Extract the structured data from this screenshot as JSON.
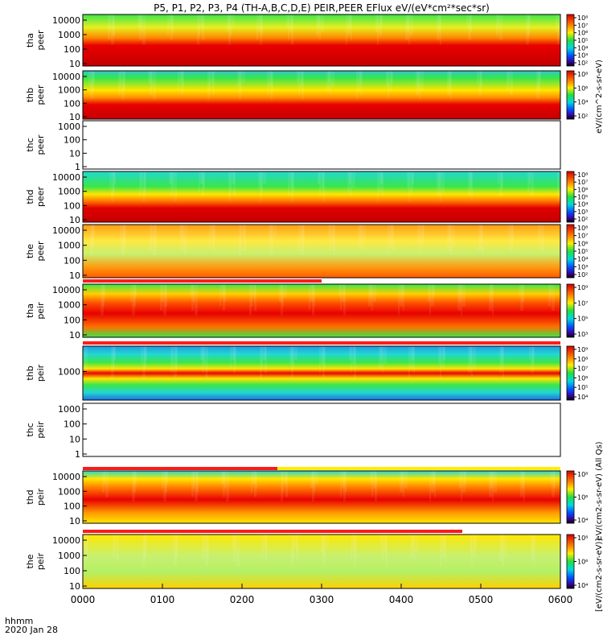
{
  "title": "P5, P1, P2, P3, P4 (TH-A,B,C,D,E) PEIR,PEER EFlux eV/(eV*cm²*sec*sr)",
  "x_axis": {
    "ticks": [
      "0000",
      "0100",
      "0200",
      "0300",
      "0400",
      "0500",
      "0600"
    ],
    "label_line1": "hhmm",
    "label_line2": "2020 Jan 28"
  },
  "colorbar": {
    "label_peer": "eV/(cm^2-s-sr-eV)",
    "label_peir": "[eV/(cm2-s-sr-eV)]",
    "label_common": "eV/(cm2-s-sr-eV) (All Qs)"
  },
  "chart_data": [
    {
      "type": "heatmap",
      "probe": "tha",
      "species": "peer",
      "ylabel": "tha peer",
      "yticks": [
        "10",
        "100",
        "1000",
        "10000"
      ],
      "colorbar_ticks": [
        "10²",
        "10³",
        "10⁴",
        "10⁵",
        "10⁶",
        "10⁷",
        "10⁸"
      ],
      "has_data": true
    },
    {
      "type": "heatmap",
      "probe": "thb",
      "species": "peer",
      "ylabel": "thb peer",
      "yticks": [
        "10",
        "100",
        "1000",
        "10000"
      ],
      "colorbar_ticks": [
        "10²",
        "10⁴",
        "10⁶",
        "10⁸"
      ],
      "has_data": true
    },
    {
      "type": "heatmap",
      "probe": "thc",
      "species": "peer",
      "ylabel": "thc peer",
      "yticks": [
        "1",
        "10",
        "100",
        "1000"
      ],
      "colorbar_ticks": [],
      "has_data": false
    },
    {
      "type": "heatmap",
      "probe": "thd",
      "species": "peer",
      "ylabel": "thd peer",
      "yticks": [
        "10",
        "100",
        "1000",
        "10000"
      ],
      "colorbar_ticks": [
        "10²",
        "10³",
        "10⁴",
        "10⁵",
        "10⁶",
        "10⁷",
        "10⁸"
      ],
      "has_data": true
    },
    {
      "type": "heatmap",
      "probe": "the",
      "species": "peer",
      "ylabel": "the peer",
      "yticks": [
        "10",
        "100",
        "1000",
        "10000"
      ],
      "colorbar_ticks": [
        "10²",
        "10³",
        "10⁴",
        "10⁵",
        "10⁶",
        "10⁷",
        "10⁸"
      ],
      "has_data": true
    },
    {
      "type": "heatmap",
      "probe": "tha",
      "species": "peir",
      "ylabel": "tha peir",
      "yticks": [
        "10",
        "100",
        "1000",
        "10000"
      ],
      "colorbar_ticks": [
        "10³",
        "10⁵",
        "10⁷",
        "10⁹"
      ],
      "has_data": true
    },
    {
      "type": "heatmap",
      "probe": "thb",
      "species": "peir",
      "ylabel": "thb peir",
      "yticks": [
        "1000"
      ],
      "colorbar_ticks": [
        "10⁴",
        "10⁵",
        "10⁶",
        "10⁷",
        "10⁸",
        "10⁹"
      ],
      "has_data": true
    },
    {
      "type": "heatmap",
      "probe": "thc",
      "species": "peir",
      "ylabel": "thc peir",
      "yticks": [
        "1",
        "10",
        "100",
        "1000"
      ],
      "colorbar_ticks": [],
      "has_data": false
    },
    {
      "type": "heatmap",
      "probe": "thd",
      "species": "peir",
      "ylabel": "thd peir",
      "yticks": [
        "10",
        "100",
        "1000",
        "10000"
      ],
      "colorbar_ticks": [
        "10⁴",
        "10⁶",
        "10⁸"
      ],
      "has_data": true
    },
    {
      "type": "heatmap",
      "probe": "the",
      "species": "peir",
      "ylabel": "the peir",
      "yticks": [
        "10",
        "100",
        "1000",
        "10000"
      ],
      "colorbar_ticks": [
        "10⁴",
        "10⁶",
        "10⁸"
      ],
      "has_data": true
    }
  ],
  "colors": {
    "red": "#e80000",
    "dark_red": "#c40000",
    "orange": "#ff7800",
    "yellow": "#ffe600",
    "green": "#39e64a",
    "cyan": "#22d7d2",
    "blue": "#1f6fe0",
    "navy": "#000a9a",
    "flag_red": "#ff1a1a",
    "flag_yellow": "#ffee00"
  }
}
